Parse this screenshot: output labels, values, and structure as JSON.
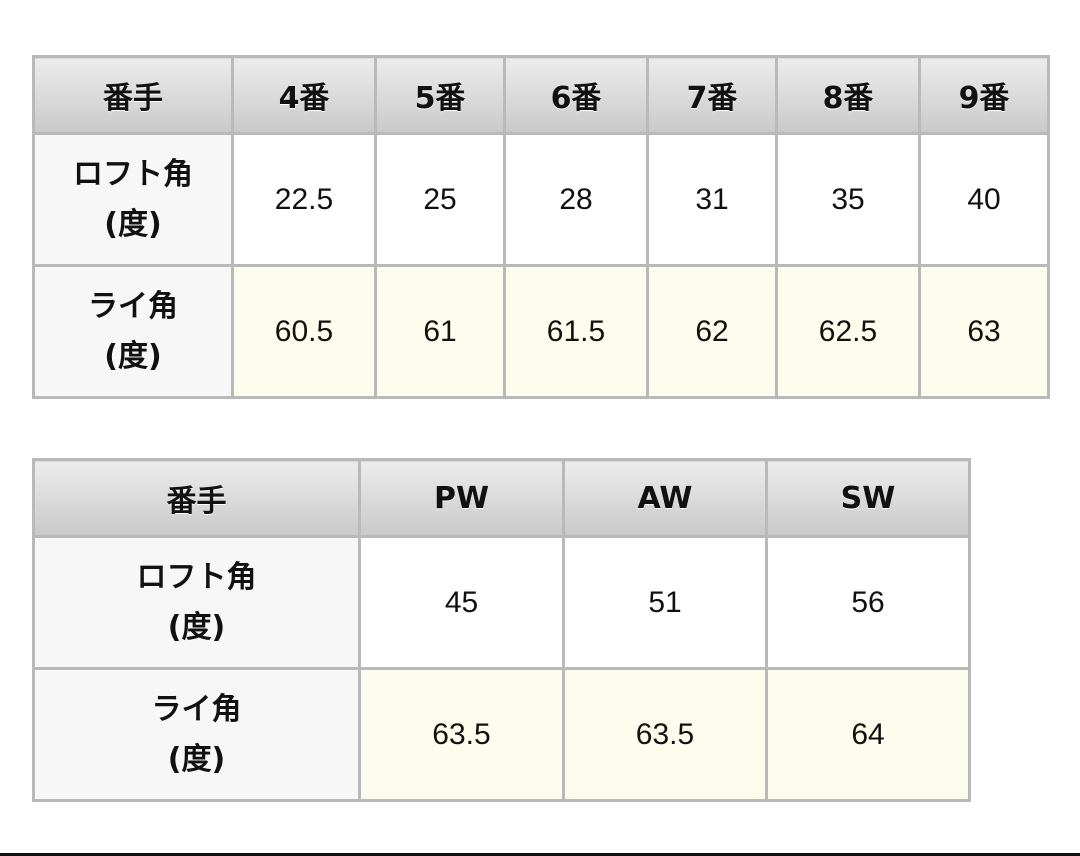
{
  "table1": {
    "header": [
      "番手",
      "4番",
      "5番",
      "6番",
      "7番",
      "8番",
      "9番"
    ],
    "loft": {
      "label1": "ロフト角",
      "label2": "(度)",
      "values": [
        "22.5",
        "25",
        "28",
        "31",
        "35",
        "40"
      ]
    },
    "lie": {
      "label1": "ライ角",
      "label2": "(度)",
      "values": [
        "60.5",
        "61",
        "61.5",
        "62",
        "62.5",
        "63"
      ]
    }
  },
  "table2": {
    "header": [
      "番手",
      "PW",
      "AW",
      "SW"
    ],
    "loft": {
      "label1": "ロフト角",
      "label2": "(度)",
      "values": [
        "45",
        "51",
        "56"
      ]
    },
    "lie": {
      "label1": "ライ角",
      "label2": "(度)",
      "values": [
        "63.5",
        "63.5",
        "64"
      ]
    }
  }
}
